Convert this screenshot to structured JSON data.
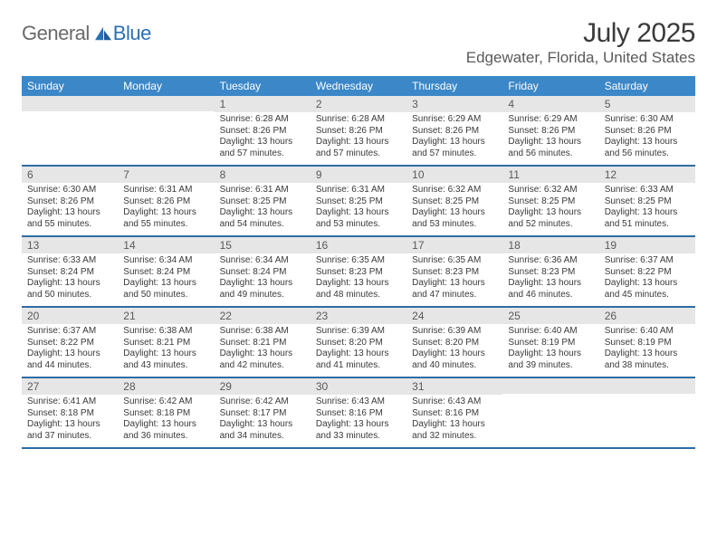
{
  "brand": {
    "word1": "General",
    "word2": "Blue"
  },
  "title": "July 2025",
  "location": "Edgewater, Florida, United States",
  "colors": {
    "header_bg": "#3b87c8",
    "week_divider": "#2e6da4",
    "daynum_bg": "#e6e6e6",
    "text": "#3a3a3a",
    "brand_gray": "#6a6a6a",
    "brand_blue": "#2b6fb5"
  },
  "dow": [
    "Sunday",
    "Monday",
    "Tuesday",
    "Wednesday",
    "Thursday",
    "Friday",
    "Saturday"
  ],
  "weeks": [
    [
      {
        "n": "",
        "sr": "",
        "ss": "",
        "dl1": "",
        "dl2": ""
      },
      {
        "n": "",
        "sr": "",
        "ss": "",
        "dl1": "",
        "dl2": ""
      },
      {
        "n": "1",
        "sr": "Sunrise: 6:28 AM",
        "ss": "Sunset: 8:26 PM",
        "dl1": "Daylight: 13 hours",
        "dl2": "and 57 minutes."
      },
      {
        "n": "2",
        "sr": "Sunrise: 6:28 AM",
        "ss": "Sunset: 8:26 PM",
        "dl1": "Daylight: 13 hours",
        "dl2": "and 57 minutes."
      },
      {
        "n": "3",
        "sr": "Sunrise: 6:29 AM",
        "ss": "Sunset: 8:26 PM",
        "dl1": "Daylight: 13 hours",
        "dl2": "and 57 minutes."
      },
      {
        "n": "4",
        "sr": "Sunrise: 6:29 AM",
        "ss": "Sunset: 8:26 PM",
        "dl1": "Daylight: 13 hours",
        "dl2": "and 56 minutes."
      },
      {
        "n": "5",
        "sr": "Sunrise: 6:30 AM",
        "ss": "Sunset: 8:26 PM",
        "dl1": "Daylight: 13 hours",
        "dl2": "and 56 minutes."
      }
    ],
    [
      {
        "n": "6",
        "sr": "Sunrise: 6:30 AM",
        "ss": "Sunset: 8:26 PM",
        "dl1": "Daylight: 13 hours",
        "dl2": "and 55 minutes."
      },
      {
        "n": "7",
        "sr": "Sunrise: 6:31 AM",
        "ss": "Sunset: 8:26 PM",
        "dl1": "Daylight: 13 hours",
        "dl2": "and 55 minutes."
      },
      {
        "n": "8",
        "sr": "Sunrise: 6:31 AM",
        "ss": "Sunset: 8:25 PM",
        "dl1": "Daylight: 13 hours",
        "dl2": "and 54 minutes."
      },
      {
        "n": "9",
        "sr": "Sunrise: 6:31 AM",
        "ss": "Sunset: 8:25 PM",
        "dl1": "Daylight: 13 hours",
        "dl2": "and 53 minutes."
      },
      {
        "n": "10",
        "sr": "Sunrise: 6:32 AM",
        "ss": "Sunset: 8:25 PM",
        "dl1": "Daylight: 13 hours",
        "dl2": "and 53 minutes."
      },
      {
        "n": "11",
        "sr": "Sunrise: 6:32 AM",
        "ss": "Sunset: 8:25 PM",
        "dl1": "Daylight: 13 hours",
        "dl2": "and 52 minutes."
      },
      {
        "n": "12",
        "sr": "Sunrise: 6:33 AM",
        "ss": "Sunset: 8:25 PM",
        "dl1": "Daylight: 13 hours",
        "dl2": "and 51 minutes."
      }
    ],
    [
      {
        "n": "13",
        "sr": "Sunrise: 6:33 AM",
        "ss": "Sunset: 8:24 PM",
        "dl1": "Daylight: 13 hours",
        "dl2": "and 50 minutes."
      },
      {
        "n": "14",
        "sr": "Sunrise: 6:34 AM",
        "ss": "Sunset: 8:24 PM",
        "dl1": "Daylight: 13 hours",
        "dl2": "and 50 minutes."
      },
      {
        "n": "15",
        "sr": "Sunrise: 6:34 AM",
        "ss": "Sunset: 8:24 PM",
        "dl1": "Daylight: 13 hours",
        "dl2": "and 49 minutes."
      },
      {
        "n": "16",
        "sr": "Sunrise: 6:35 AM",
        "ss": "Sunset: 8:23 PM",
        "dl1": "Daylight: 13 hours",
        "dl2": "and 48 minutes."
      },
      {
        "n": "17",
        "sr": "Sunrise: 6:35 AM",
        "ss": "Sunset: 8:23 PM",
        "dl1": "Daylight: 13 hours",
        "dl2": "and 47 minutes."
      },
      {
        "n": "18",
        "sr": "Sunrise: 6:36 AM",
        "ss": "Sunset: 8:23 PM",
        "dl1": "Daylight: 13 hours",
        "dl2": "and 46 minutes."
      },
      {
        "n": "19",
        "sr": "Sunrise: 6:37 AM",
        "ss": "Sunset: 8:22 PM",
        "dl1": "Daylight: 13 hours",
        "dl2": "and 45 minutes."
      }
    ],
    [
      {
        "n": "20",
        "sr": "Sunrise: 6:37 AM",
        "ss": "Sunset: 8:22 PM",
        "dl1": "Daylight: 13 hours",
        "dl2": "and 44 minutes."
      },
      {
        "n": "21",
        "sr": "Sunrise: 6:38 AM",
        "ss": "Sunset: 8:21 PM",
        "dl1": "Daylight: 13 hours",
        "dl2": "and 43 minutes."
      },
      {
        "n": "22",
        "sr": "Sunrise: 6:38 AM",
        "ss": "Sunset: 8:21 PM",
        "dl1": "Daylight: 13 hours",
        "dl2": "and 42 minutes."
      },
      {
        "n": "23",
        "sr": "Sunrise: 6:39 AM",
        "ss": "Sunset: 8:20 PM",
        "dl1": "Daylight: 13 hours",
        "dl2": "and 41 minutes."
      },
      {
        "n": "24",
        "sr": "Sunrise: 6:39 AM",
        "ss": "Sunset: 8:20 PM",
        "dl1": "Daylight: 13 hours",
        "dl2": "and 40 minutes."
      },
      {
        "n": "25",
        "sr": "Sunrise: 6:40 AM",
        "ss": "Sunset: 8:19 PM",
        "dl1": "Daylight: 13 hours",
        "dl2": "and 39 minutes."
      },
      {
        "n": "26",
        "sr": "Sunrise: 6:40 AM",
        "ss": "Sunset: 8:19 PM",
        "dl1": "Daylight: 13 hours",
        "dl2": "and 38 minutes."
      }
    ],
    [
      {
        "n": "27",
        "sr": "Sunrise: 6:41 AM",
        "ss": "Sunset: 8:18 PM",
        "dl1": "Daylight: 13 hours",
        "dl2": "and 37 minutes."
      },
      {
        "n": "28",
        "sr": "Sunrise: 6:42 AM",
        "ss": "Sunset: 8:18 PM",
        "dl1": "Daylight: 13 hours",
        "dl2": "and 36 minutes."
      },
      {
        "n": "29",
        "sr": "Sunrise: 6:42 AM",
        "ss": "Sunset: 8:17 PM",
        "dl1": "Daylight: 13 hours",
        "dl2": "and 34 minutes."
      },
      {
        "n": "30",
        "sr": "Sunrise: 6:43 AM",
        "ss": "Sunset: 8:16 PM",
        "dl1": "Daylight: 13 hours",
        "dl2": "and 33 minutes."
      },
      {
        "n": "31",
        "sr": "Sunrise: 6:43 AM",
        "ss": "Sunset: 8:16 PM",
        "dl1": "Daylight: 13 hours",
        "dl2": "and 32 minutes."
      },
      {
        "n": "",
        "sr": "",
        "ss": "",
        "dl1": "",
        "dl2": ""
      },
      {
        "n": "",
        "sr": "",
        "ss": "",
        "dl1": "",
        "dl2": ""
      }
    ]
  ]
}
